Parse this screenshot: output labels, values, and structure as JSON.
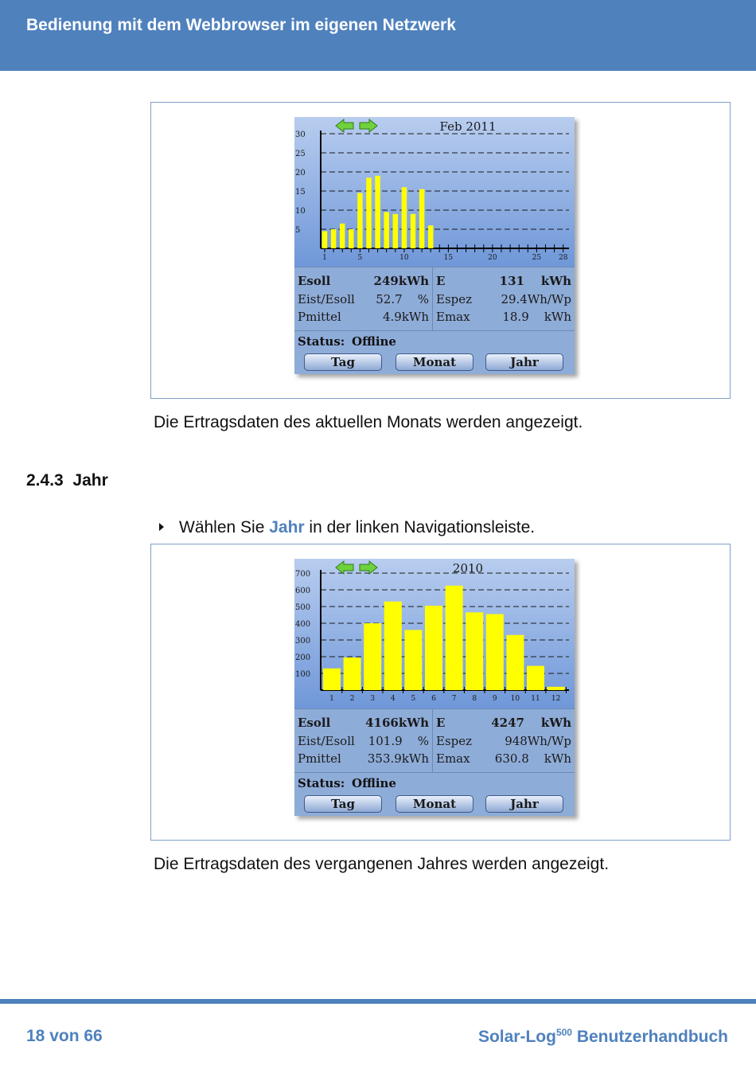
{
  "header": {
    "title": "Bedienung mit dem Webbrowser im eigenen Netzwerk"
  },
  "month_view": {
    "chart_data": {
      "type": "bar",
      "title": "Feb 2011",
      "ylim": [
        0,
        30
      ],
      "y_ticks": [
        "30",
        "25",
        "20",
        "15",
        "10",
        "5"
      ],
      "x_ticks": [
        "1",
        "5",
        "10",
        "15",
        "20",
        "25",
        "28"
      ],
      "x": [
        1,
        2,
        3,
        4,
        5,
        6,
        7,
        8,
        9,
        10,
        11,
        12,
        13
      ],
      "values": [
        4.5,
        5,
        6.5,
        5,
        14.5,
        18.5,
        19,
        9.5,
        9,
        16,
        9,
        15.5,
        6
      ],
      "color": "#ffff00",
      "grid": "dashed horizontal"
    },
    "info": {
      "esoll_label": "Esoll",
      "esoll_value": "249kWh",
      "eist_label": "Eist/Esoll",
      "eist_value": "52.7",
      "eist_unit": "%",
      "pmittel_label": "Pmittel",
      "pmittel_value": "4.9kWh",
      "e_label": "E",
      "e_value": "131",
      "e_unit": "kWh",
      "espez_label": "Espez",
      "espez_value": "29.4Wh/Wp",
      "emax_label": "Emax",
      "emax_value": "18.9",
      "emax_unit": "kWh"
    },
    "status_label": "Status:",
    "status_value": "Offline",
    "buttons": {
      "tag": "Tag",
      "monat": "Monat",
      "jahr": "Jahr"
    }
  },
  "caption1": "Die Ertragsdaten des aktuellen Monats werden angezeigt.",
  "section": {
    "number": "2.4.3",
    "title": "Jahr"
  },
  "bullet": {
    "prefix": "Wählen Sie ",
    "highlight": "Jahr",
    "suffix": " in der linken Navigationsleiste."
  },
  "year_view": {
    "chart_data": {
      "type": "bar",
      "title": "2010",
      "ylim": [
        0,
        700
      ],
      "y_ticks": [
        "700",
        "600",
        "500",
        "400",
        "300",
        "200",
        "100"
      ],
      "categories": [
        "1",
        "2",
        "3",
        "4",
        "5",
        "6",
        "7",
        "8",
        "9",
        "10",
        "11",
        "12"
      ],
      "values": [
        130,
        195,
        400,
        530,
        360,
        505,
        625,
        465,
        455,
        330,
        145,
        20
      ],
      "color": "#ffff00",
      "grid": "dashed horizontal"
    },
    "info": {
      "esoll_label": "Esoll",
      "esoll_value": "4166kWh",
      "eist_label": "Eist/Esoll",
      "eist_value": "101.9",
      "eist_unit": "%",
      "pmittel_label": "Pmittel",
      "pmittel_value": "353.9kWh",
      "e_label": "E",
      "e_value": "4247",
      "e_unit": "kWh",
      "espez_label": "Espez",
      "espez_value": "948Wh/Wp",
      "emax_label": "Emax",
      "emax_value": "630.8",
      "emax_unit": "kWh"
    },
    "status_label": "Status:",
    "status_value": "Offline",
    "buttons": {
      "tag": "Tag",
      "monat": "Monat",
      "jahr": "Jahr"
    }
  },
  "caption2": "Die Ertragsdaten des vergangenen Jahres werden angezeigt.",
  "footer": {
    "page": "18 von 66",
    "product": "Solar-Log",
    "superscript": "500",
    "title_suffix": " Benutzerhandbuch"
  },
  "colors": {
    "accent": "#4f81bd",
    "bar": "#ffff00"
  }
}
